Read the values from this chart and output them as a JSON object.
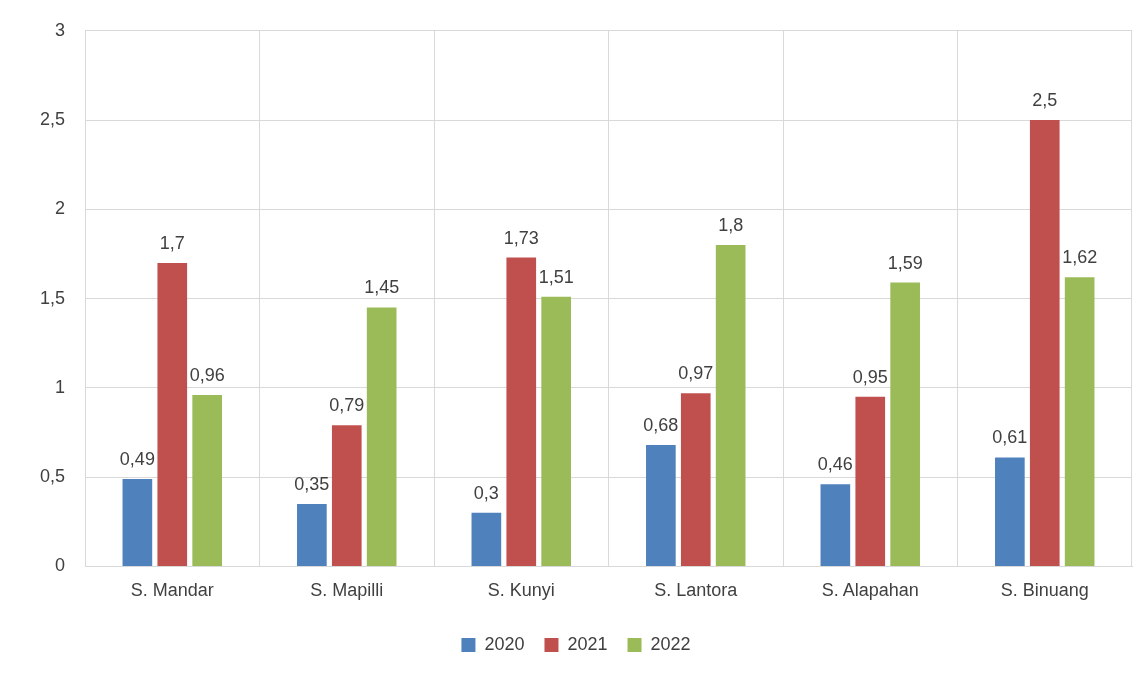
{
  "chart_data": {
    "type": "bar",
    "categories": [
      "S. Mandar",
      "S. Mapilli",
      "S. Kunyi",
      "S. Lantora",
      "S. Alapahan",
      "S. Binuang"
    ],
    "series": [
      {
        "name": "2020",
        "color": "#4f81bd",
        "values": [
          0.49,
          0.35,
          0.3,
          0.68,
          0.46,
          0.61
        ],
        "value_labels": [
          "0,49",
          "0,35",
          "0,3",
          "0,68",
          "0,46",
          "0,61"
        ]
      },
      {
        "name": "2021",
        "color": "#c0504d",
        "values": [
          1.7,
          0.79,
          1.73,
          0.97,
          0.95,
          2.5
        ],
        "value_labels": [
          "1,7",
          "0,79",
          "1,73",
          "0,97",
          "0,95",
          "2,5"
        ]
      },
      {
        "name": "2022",
        "color": "#9bbb59",
        "values": [
          0.96,
          1.45,
          1.51,
          1.8,
          1.59,
          1.62
        ],
        "value_labels": [
          "0,96",
          "1,45",
          "1,51",
          "1,8",
          "1,59",
          "1,62"
        ]
      }
    ],
    "ylim": [
      0,
      3
    ],
    "yticks": [
      0,
      {
        "value": 0.5,
        "label": "0,5"
      },
      1,
      {
        "value": 1.5,
        "label": "1,5"
      },
      2,
      {
        "value": 2.5,
        "label": "2,5"
      },
      3
    ],
    "grid": true,
    "legend": "bottom"
  }
}
